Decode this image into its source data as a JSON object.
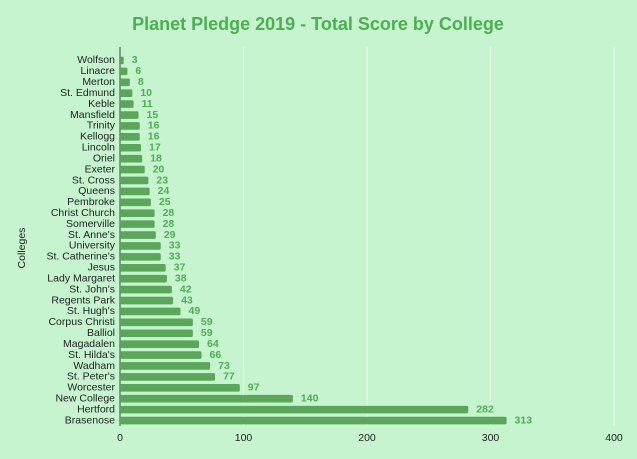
{
  "chart_data": {
    "type": "bar",
    "orientation": "horizontal",
    "title": "Planet Pledge 2019 - Total Score by College",
    "y_label": "Colleges",
    "categories": [
      "Wolfson",
      "Linacre",
      "Merton",
      "St. Edmund",
      "Keble",
      "Mansfield",
      "Trinity",
      "Kellogg",
      "Lincoln",
      "Oriel",
      "Exeter",
      "St. Cross",
      "Queens",
      "Pembroke",
      "Christ Church",
      "Somerville",
      "St. Anne's",
      "University",
      "St. Catherine's",
      "Jesus",
      "Lady Margaret",
      "St. John's",
      "Regents Park",
      "St. Hugh's",
      "Corpus Christi",
      "Balliol",
      "Magadalen",
      "St. Hilda's",
      "Wadham",
      "St. Peter's",
      "Worcester",
      "New College",
      "Hertford",
      "Brasenose"
    ],
    "values": [
      3,
      6,
      8,
      10,
      11,
      15,
      16,
      16,
      17,
      18,
      20,
      23,
      24,
      25,
      28,
      28,
      29,
      33,
      33,
      37,
      38,
      42,
      43,
      49,
      59,
      59,
      64,
      66,
      73,
      77,
      97,
      140,
      282,
      313
    ],
    "color": "#5aa75a",
    "xlim": [
      0,
      400
    ],
    "xticks": [
      0,
      100,
      200,
      300,
      400
    ],
    "grid": true
  }
}
